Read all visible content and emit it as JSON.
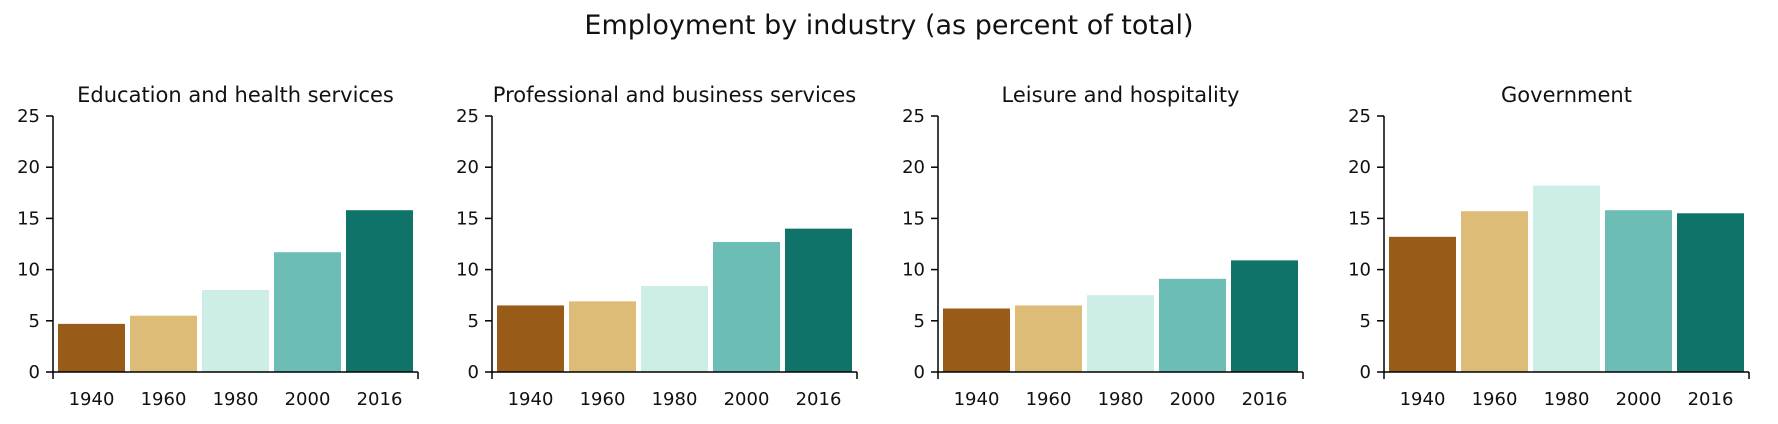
{
  "title": "Employment by industry (as percent of total)",
  "colors": {
    "1940": "#985b18",
    "1960": "#ddbc78",
    "1980": "#cdede7",
    "2000": "#6cbdb6",
    "2016": "#0f7369"
  },
  "chart_data": [
    {
      "type": "bar",
      "title": "Education and health services",
      "categories": [
        "1940",
        "1960",
        "1980",
        "2000",
        "2016"
      ],
      "values": [
        4.7,
        5.5,
        8.0,
        11.7,
        15.8
      ],
      "ylim": [
        0,
        25
      ],
      "yticks": [
        "0",
        "5",
        "10",
        "15",
        "20",
        "25"
      ],
      "xlabel": "",
      "ylabel": "",
      "grid": false
    },
    {
      "type": "bar",
      "title": "Professional and business services",
      "categories": [
        "1940",
        "1960",
        "1980",
        "2000",
        "2016"
      ],
      "values": [
        6.5,
        6.9,
        8.4,
        12.7,
        14.0
      ],
      "ylim": [
        0,
        25
      ],
      "yticks": [
        "0",
        "5",
        "10",
        "15",
        "20",
        "25"
      ],
      "xlabel": "",
      "ylabel": "",
      "grid": false
    },
    {
      "type": "bar",
      "title": "Leisure and hospitality",
      "categories": [
        "1940",
        "1960",
        "1980",
        "2000",
        "2016"
      ],
      "values": [
        6.2,
        6.5,
        7.5,
        9.1,
        10.9
      ],
      "ylim": [
        0,
        25
      ],
      "yticks": [
        "0",
        "5",
        "10",
        "15",
        "20",
        "25"
      ],
      "xlabel": "",
      "ylabel": "",
      "grid": false
    },
    {
      "type": "bar",
      "title": "Government",
      "categories": [
        "1940",
        "1960",
        "1980",
        "2000",
        "2016"
      ],
      "values": [
        13.2,
        15.7,
        18.2,
        15.8,
        15.5
      ],
      "ylim": [
        0,
        25
      ],
      "yticks": [
        "0",
        "5",
        "10",
        "15",
        "20",
        "25"
      ],
      "xlabel": "",
      "ylabel": "",
      "grid": false
    }
  ]
}
